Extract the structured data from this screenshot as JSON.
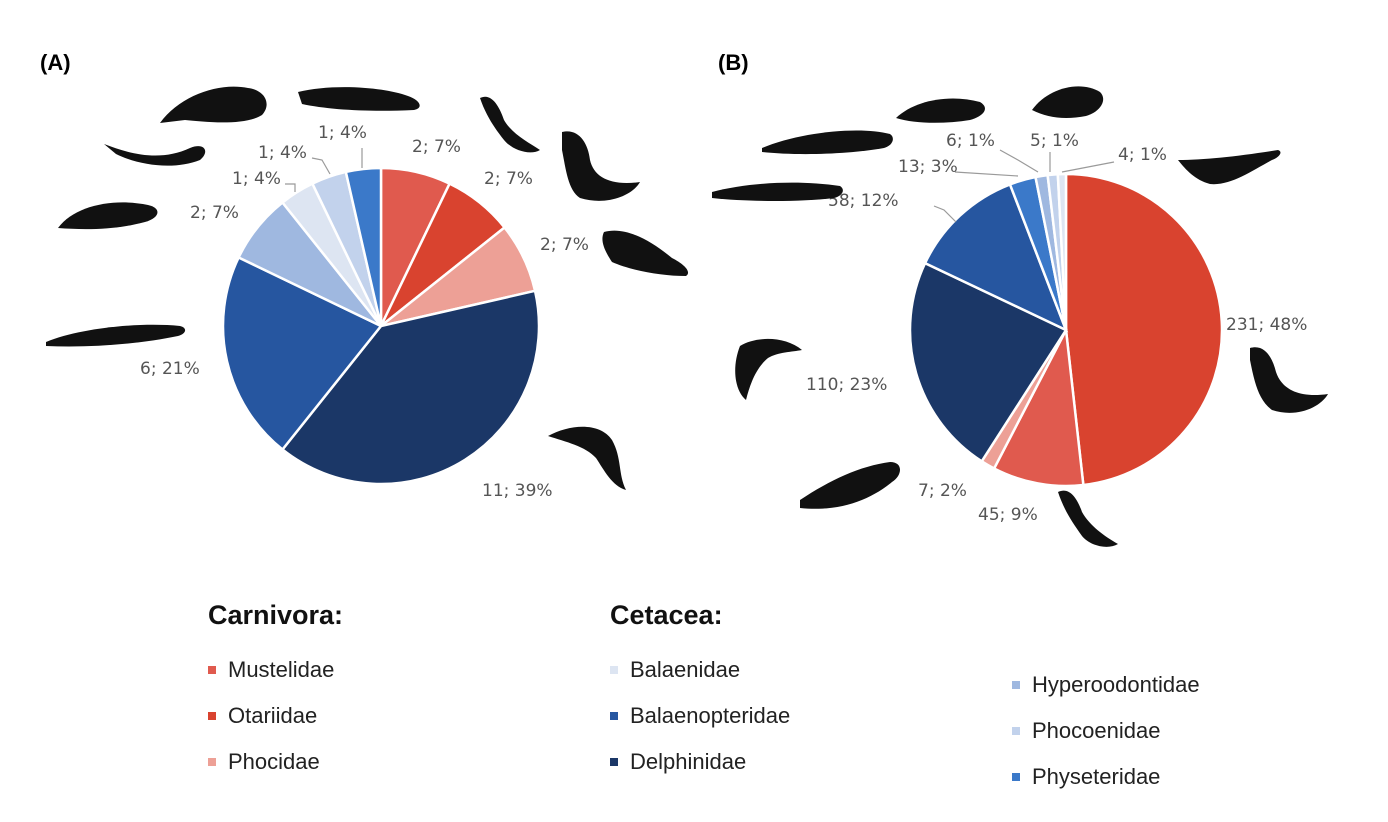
{
  "panels": [
    "(A)",
    "(B)"
  ],
  "chart_data": [
    {
      "type": "pie",
      "panel": "(A)",
      "slices": [
        {
          "category": "Mustelidae",
          "value": 2,
          "label": "2; 7%",
          "color": "#e05a4e"
        },
        {
          "category": "Otariidae",
          "value": 2,
          "label": "2; 7%",
          "color": "#d9432f"
        },
        {
          "category": "Phocidae",
          "value": 2,
          "label": "2; 7%",
          "color": "#eda096"
        },
        {
          "category": "Delphinidae",
          "value": 11,
          "label": "11; 39%",
          "color": "#1b3767"
        },
        {
          "category": "Balaenopteridae",
          "value": 6,
          "label": "6; 21%",
          "color": "#2656a0"
        },
        {
          "category": "Hyperoodontidae",
          "value": 2,
          "label": "2; 7%",
          "color": "#9fb8e0"
        },
        {
          "category": "Balaenidae",
          "value": 1,
          "label": "1; 4%",
          "color": "#dde5f2"
        },
        {
          "category": "Phocoenidae",
          "value": 1,
          "label": "1; 4%",
          "color": "#c2d2ec"
        },
        {
          "category": "Physeteridae",
          "value": 1,
          "label": "1; 4%",
          "color": "#3b79c9"
        }
      ]
    },
    {
      "type": "pie",
      "panel": "(B)",
      "slices": [
        {
          "category": "Otariidae",
          "value": 231,
          "label": "231; 48%",
          "color": "#d9432f"
        },
        {
          "category": "Mustelidae",
          "value": 45,
          "label": "45; 9%",
          "color": "#e05a4e"
        },
        {
          "category": "Phocidae",
          "value": 7,
          "label": "7; 2%",
          "color": "#eda096"
        },
        {
          "category": "Delphinidae",
          "value": 110,
          "label": "110; 23%",
          "color": "#1b3767"
        },
        {
          "category": "Balaenopteridae",
          "value": 58,
          "label": "58; 12%",
          "color": "#2656a0"
        },
        {
          "category": "Physeteridae",
          "value": 13,
          "label": "13; 3%",
          "color": "#3b79c9"
        },
        {
          "category": "Hyperoodontidae",
          "value": 6,
          "label": "6; 1%",
          "color": "#9fb8e0"
        },
        {
          "category": "Phocoenidae",
          "value": 5,
          "label": "5; 1%",
          "color": "#c2d2ec"
        },
        {
          "category": "Balaenidae",
          "value": 4,
          "label": "4; 1%",
          "color": "#dde5f2"
        }
      ]
    }
  ],
  "legend": {
    "groups": [
      {
        "title": "Carnivora:",
        "columns": [
          [
            {
              "label": "Mustelidae",
              "color": "#e05a4e"
            },
            {
              "label": "Otariidae",
              "color": "#d9432f"
            },
            {
              "label": "Phocidae",
              "color": "#eda096"
            }
          ]
        ]
      },
      {
        "title": "Cetacea:",
        "columns": [
          [
            {
              "label": "Balaenidae",
              "color": "#dde5f2"
            },
            {
              "label": "Balaenopteridae",
              "color": "#2656a0"
            },
            {
              "label": "Delphinidae",
              "color": "#1b3767"
            }
          ],
          [
            {
              "label": "Hyperoodontidae",
              "color": "#9fb8e0"
            },
            {
              "label": "Phocoenidae",
              "color": "#c2d2ec"
            },
            {
              "label": "Physeteridae",
              "color": "#3b79c9"
            }
          ]
        ]
      }
    ]
  },
  "silhouettes": [
    "whale-icon",
    "dolphin-icon",
    "seal-icon",
    "otter-icon",
    "sea-lion-icon"
  ]
}
